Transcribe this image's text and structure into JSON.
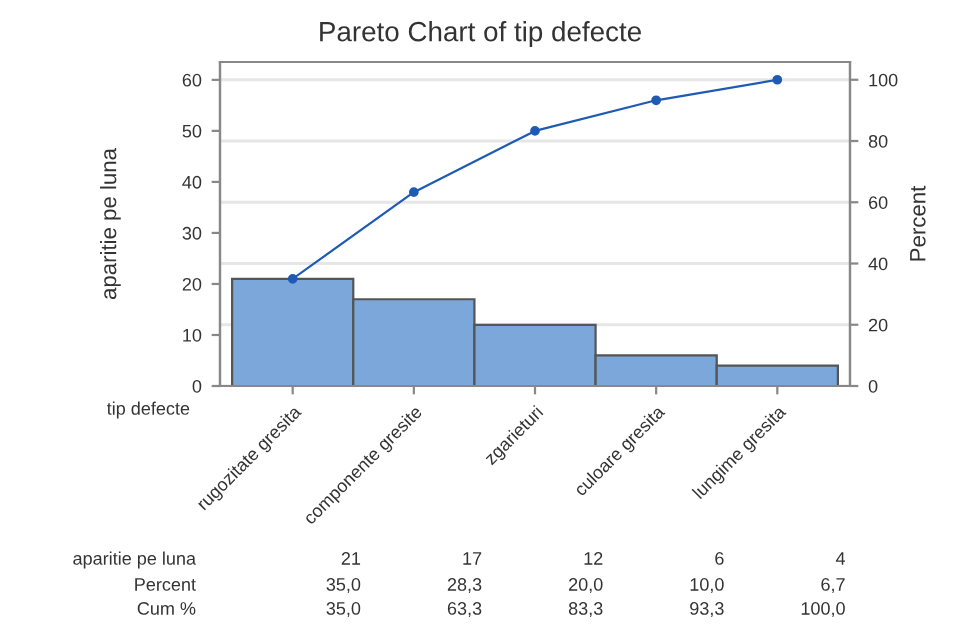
{
  "chart_data": {
    "type": "bar",
    "title": "Pareto Chart of tip defecte",
    "xlabel": "tip defecte",
    "ylabel": "aparitie pe luna",
    "y2label": "Percent",
    "categories": [
      "rugozitate gresita",
      "componente gresite",
      "zgarieturi",
      "culoare gresita",
      "lungime gresita"
    ],
    "series": [
      {
        "color": "#7ba7db",
        "values": [
          21,
          17,
          12,
          6,
          4
        ]
      },
      {
        "type": "line",
        "axis": "y2",
        "color": "#1f5bb5",
        "marker": "circle",
        "values": [
          35.0,
          63.3,
          83.3,
          93.3,
          100.0
        ]
      }
    ],
    "annotations": [
      "aparitie pe luna",
      "21",
      "17",
      "12",
      "6",
      "4",
      "Percent",
      "35,0",
      "28,3",
      "20,0",
      "10,0",
      "6,7",
      "Cum %",
      "35,0",
      "63,3",
      "83,3",
      "93,3",
      "100,0"
    ],
    "ylim": [
      0,
      63.5
    ],
    "yticks": [
      0,
      10,
      20,
      30,
      40,
      50,
      60
    ],
    "y2lim": [
      0,
      105.8
    ],
    "y2ticks": [
      0,
      20,
      40,
      60,
      80,
      100
    ],
    "grid": "y2",
    "legend": false
  }
}
